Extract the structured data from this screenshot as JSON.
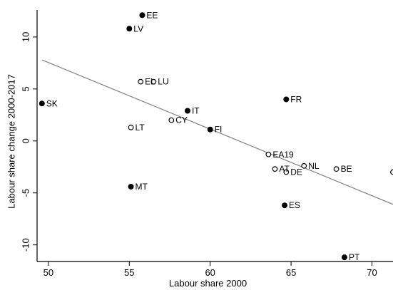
{
  "chart_data": {
    "type": "scatter",
    "xlabel": "Labour share 2000",
    "ylabel": "Labour share change 2000-2017",
    "xlim": [
      49.3,
      71.3
    ],
    "ylim": [
      -11.6,
      12.6
    ],
    "xticks": [
      50,
      55,
      60,
      65,
      70
    ],
    "yticks": [
      -10,
      -5,
      0,
      5,
      10
    ],
    "grid": false,
    "legend": "none",
    "colors": {
      "marker": "#000000",
      "trend": "#808080"
    },
    "trend_line": {
      "x": [
        49.6,
        71.3
      ],
      "y": [
        7.8,
        -6.1
      ]
    },
    "points": [
      {
        "label": "EE",
        "x": 55.8,
        "y": 12.1,
        "filled": true
      },
      {
        "label": "LV",
        "x": 55.0,
        "y": 10.8,
        "filled": true
      },
      {
        "label": "EL",
        "x": 55.7,
        "y": 5.7,
        "filled": false
      },
      {
        "label": "LU",
        "x": 56.5,
        "y": 5.7,
        "filled": false
      },
      {
        "label": "SK",
        "x": 49.6,
        "y": 3.6,
        "filled": true
      },
      {
        "label": "FR",
        "x": 64.7,
        "y": 4.0,
        "filled": true
      },
      {
        "label": "IT",
        "x": 58.6,
        "y": 2.9,
        "filled": true
      },
      {
        "label": "CY",
        "x": 57.6,
        "y": 2.0,
        "filled": false
      },
      {
        "label": "LT",
        "x": 55.1,
        "y": 1.3,
        "filled": false
      },
      {
        "label": "FI",
        "x": 60.0,
        "y": 1.1,
        "filled": true
      },
      {
        "label": "EA19",
        "x": 63.6,
        "y": -1.3,
        "filled": false
      },
      {
        "label": "NL",
        "x": 65.8,
        "y": -2.4,
        "filled": false
      },
      {
        "label": "AT",
        "x": 64.0,
        "y": -2.7,
        "filled": false
      },
      {
        "label": "BE",
        "x": 67.8,
        "y": -2.7,
        "filled": false
      },
      {
        "label": "DE",
        "x": 64.7,
        "y": -3.0,
        "filled": false
      },
      {
        "label": "",
        "x": 71.3,
        "y": -3.0,
        "filled": false
      },
      {
        "label": "MT",
        "x": 55.1,
        "y": -4.4,
        "filled": true
      },
      {
        "label": "ES",
        "x": 64.6,
        "y": -6.2,
        "filled": true
      },
      {
        "label": "PT",
        "x": 68.3,
        "y": -11.2,
        "filled": true
      }
    ]
  }
}
